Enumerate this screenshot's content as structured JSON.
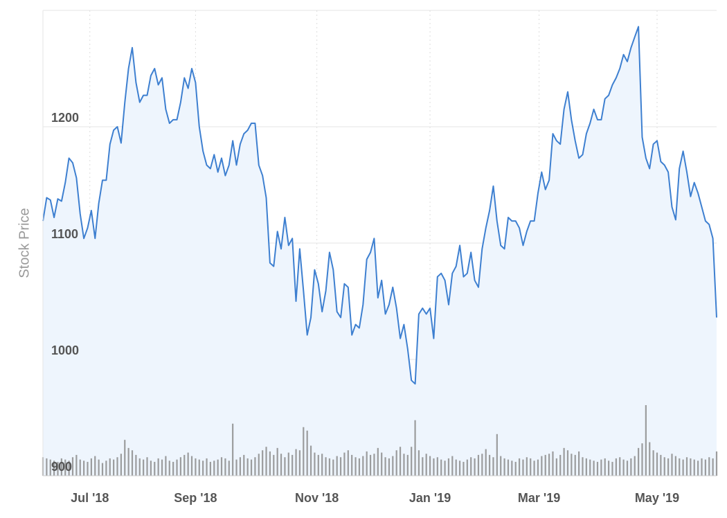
{
  "chart_data": {
    "type": "line",
    "ylabel": "Stock Price",
    "color": "#3d7fd0",
    "fill_color": "#eef5fd",
    "volume_color": "#8c8c8c",
    "ylim": [
      900,
      1300
    ],
    "yticks": [
      900,
      1000,
      1100,
      1200
    ],
    "grid": true,
    "xlim": [
      0,
      181
    ],
    "xticks": [
      {
        "value": 12.6,
        "label": "Jul '18"
      },
      {
        "value": 41,
        "label": "Sep '18"
      },
      {
        "value": 73.6,
        "label": "Nov '18"
      },
      {
        "value": 104,
        "label": "Jan '19"
      },
      {
        "value": 133.3,
        "label": "Mar '19"
      },
      {
        "value": 165,
        "label": "May '19"
      }
    ],
    "values": [
      1119,
      1139,
      1137,
      1122,
      1138,
      1136,
      1152,
      1173,
      1169,
      1156,
      1125,
      1104,
      1113,
      1128,
      1104,
      1134,
      1154,
      1154,
      1185,
      1197,
      1200,
      1186,
      1221,
      1250,
      1268,
      1238,
      1221,
      1227,
      1227,
      1244,
      1250,
      1236,
      1242,
      1215,
      1203,
      1206,
      1206,
      1221,
      1242,
      1233,
      1250,
      1238,
      1200,
      1179,
      1167,
      1164,
      1176,
      1161,
      1173,
      1158,
      1167,
      1188,
      1167,
      1185,
      1194,
      1197,
      1203,
      1203,
      1167,
      1158,
      1139,
      1083,
      1080,
      1110,
      1095,
      1122,
      1098,
      1104,
      1050,
      1095,
      1059,
      1021,
      1036,
      1077,
      1065,
      1041,
      1059,
      1092,
      1077,
      1041,
      1036,
      1065,
      1062,
      1021,
      1030,
      1027,
      1047,
      1086,
      1092,
      1104,
      1053,
      1068,
      1039,
      1047,
      1062,
      1044,
      1018,
      1030,
      1009,
      982,
      979,
      1039,
      1044,
      1039,
      1044,
      1018,
      1071,
      1074,
      1068,
      1047,
      1074,
      1080,
      1098,
      1071,
      1074,
      1092,
      1068,
      1062,
      1095,
      1113,
      1128,
      1149,
      1119,
      1098,
      1095,
      1122,
      1119,
      1119,
      1113,
      1098,
      1110,
      1119,
      1119,
      1143,
      1161,
      1146,
      1154,
      1194,
      1188,
      1185,
      1215,
      1230,
      1206,
      1188,
      1173,
      1176,
      1194,
      1203,
      1215,
      1206,
      1206,
      1224,
      1227,
      1236,
      1242,
      1250,
      1262,
      1256,
      1268,
      1277,
      1286,
      1191,
      1173,
      1164,
      1185,
      1188,
      1170,
      1167,
      1161,
      1131,
      1120,
      1164,
      1179,
      1161,
      1140,
      1152,
      1143,
      1131,
      1119,
      1116,
      1104,
      1036
    ],
    "volume": [
      1.6,
      1.5,
      1.4,
      1.3,
      1.2,
      1.5,
      1.4,
      1.3,
      1.6,
      1.8,
      1.4,
      1.3,
      1.2,
      1.5,
      1.7,
      1.4,
      1.1,
      1.3,
      1.5,
      1.4,
      1.6,
      1.9,
      3.1,
      2.4,
      2.2,
      1.8,
      1.5,
      1.4,
      1.6,
      1.3,
      1.2,
      1.5,
      1.4,
      1.7,
      1.3,
      1.2,
      1.4,
      1.6,
      1.8,
      2.0,
      1.7,
      1.5,
      1.4,
      1.3,
      1.5,
      1.2,
      1.3,
      1.4,
      1.6,
      1.5,
      1.3,
      4.5,
      1.4,
      1.6,
      1.8,
      1.5,
      1.4,
      1.6,
      1.9,
      2.2,
      2.5,
      2.1,
      1.8,
      2.4,
      1.9,
      1.6,
      2.0,
      1.8,
      2.3,
      2.2,
      4.2,
      3.9,
      2.6,
      2.0,
      1.8,
      1.9,
      1.6,
      1.5,
      1.4,
      1.7,
      1.6,
      2.0,
      2.2,
      1.8,
      1.6,
      1.5,
      1.7,
      2.1,
      1.8,
      1.9,
      2.4,
      2.0,
      1.6,
      1.5,
      1.7,
      2.2,
      2.5,
      1.9,
      1.8,
      2.5,
      4.8,
      2.2,
      1.6,
      1.9,
      1.7,
      1.5,
      1.6,
      1.4,
      1.3,
      1.5,
      1.7,
      1.4,
      1.3,
      1.2,
      1.4,
      1.6,
      1.5,
      1.8,
      1.9,
      2.3,
      1.8,
      1.6,
      3.6,
      1.7,
      1.5,
      1.4,
      1.3,
      1.2,
      1.5,
      1.4,
      1.6,
      1.5,
      1.3,
      1.4,
      1.7,
      1.8,
      1.9,
      2.1,
      1.5,
      1.8,
      2.4,
      2.2,
      1.9,
      1.8,
      2.1,
      1.6,
      1.5,
      1.4,
      1.3,
      1.2,
      1.4,
      1.5,
      1.3,
      1.2,
      1.5,
      1.6,
      1.4,
      1.3,
      1.5,
      1.7,
      2.4,
      2.8,
      6.1,
      2.9,
      2.2,
      2.0,
      1.8,
      1.6,
      1.5,
      1.9,
      1.7,
      1.5,
      1.4,
      1.6,
      1.5,
      1.4,
      1.3,
      1.5,
      1.4,
      1.6,
      1.5,
      2.1
    ]
  }
}
